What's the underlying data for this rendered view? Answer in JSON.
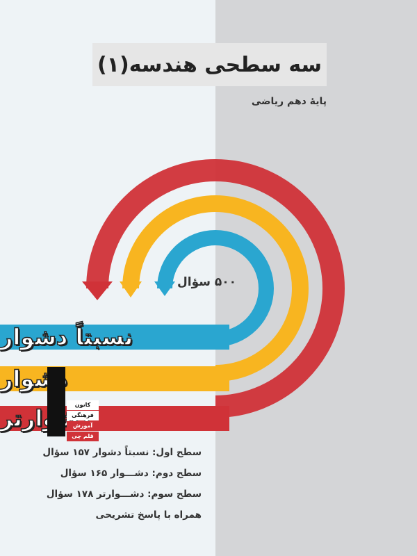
{
  "cover": {
    "title": "سه سطحی هندسه(۱)",
    "subtitle": "پایهٔ دهم ریاضی",
    "question_count": "۵۰۰ سؤال",
    "levels": [
      "نسبتاً دشوار",
      "دشوار",
      "دشوارتر"
    ],
    "level_colors": [
      "#2aa6d0",
      "#f8b520",
      "#d03238"
    ],
    "publisher_logo": [
      "کانون",
      "فرهنگی",
      "آموزش",
      "قلم چی"
    ],
    "details": [
      "سطح اول: نسبتاً دشوار  ۱۵۷ سؤال",
      "سطح دوم: دشـــوار   ۱۶۵ سؤال",
      "سطح سوم: دشـــوارتر   ۱۷۸ سؤال",
      "همراه با پاسخ تشریحی"
    ]
  }
}
